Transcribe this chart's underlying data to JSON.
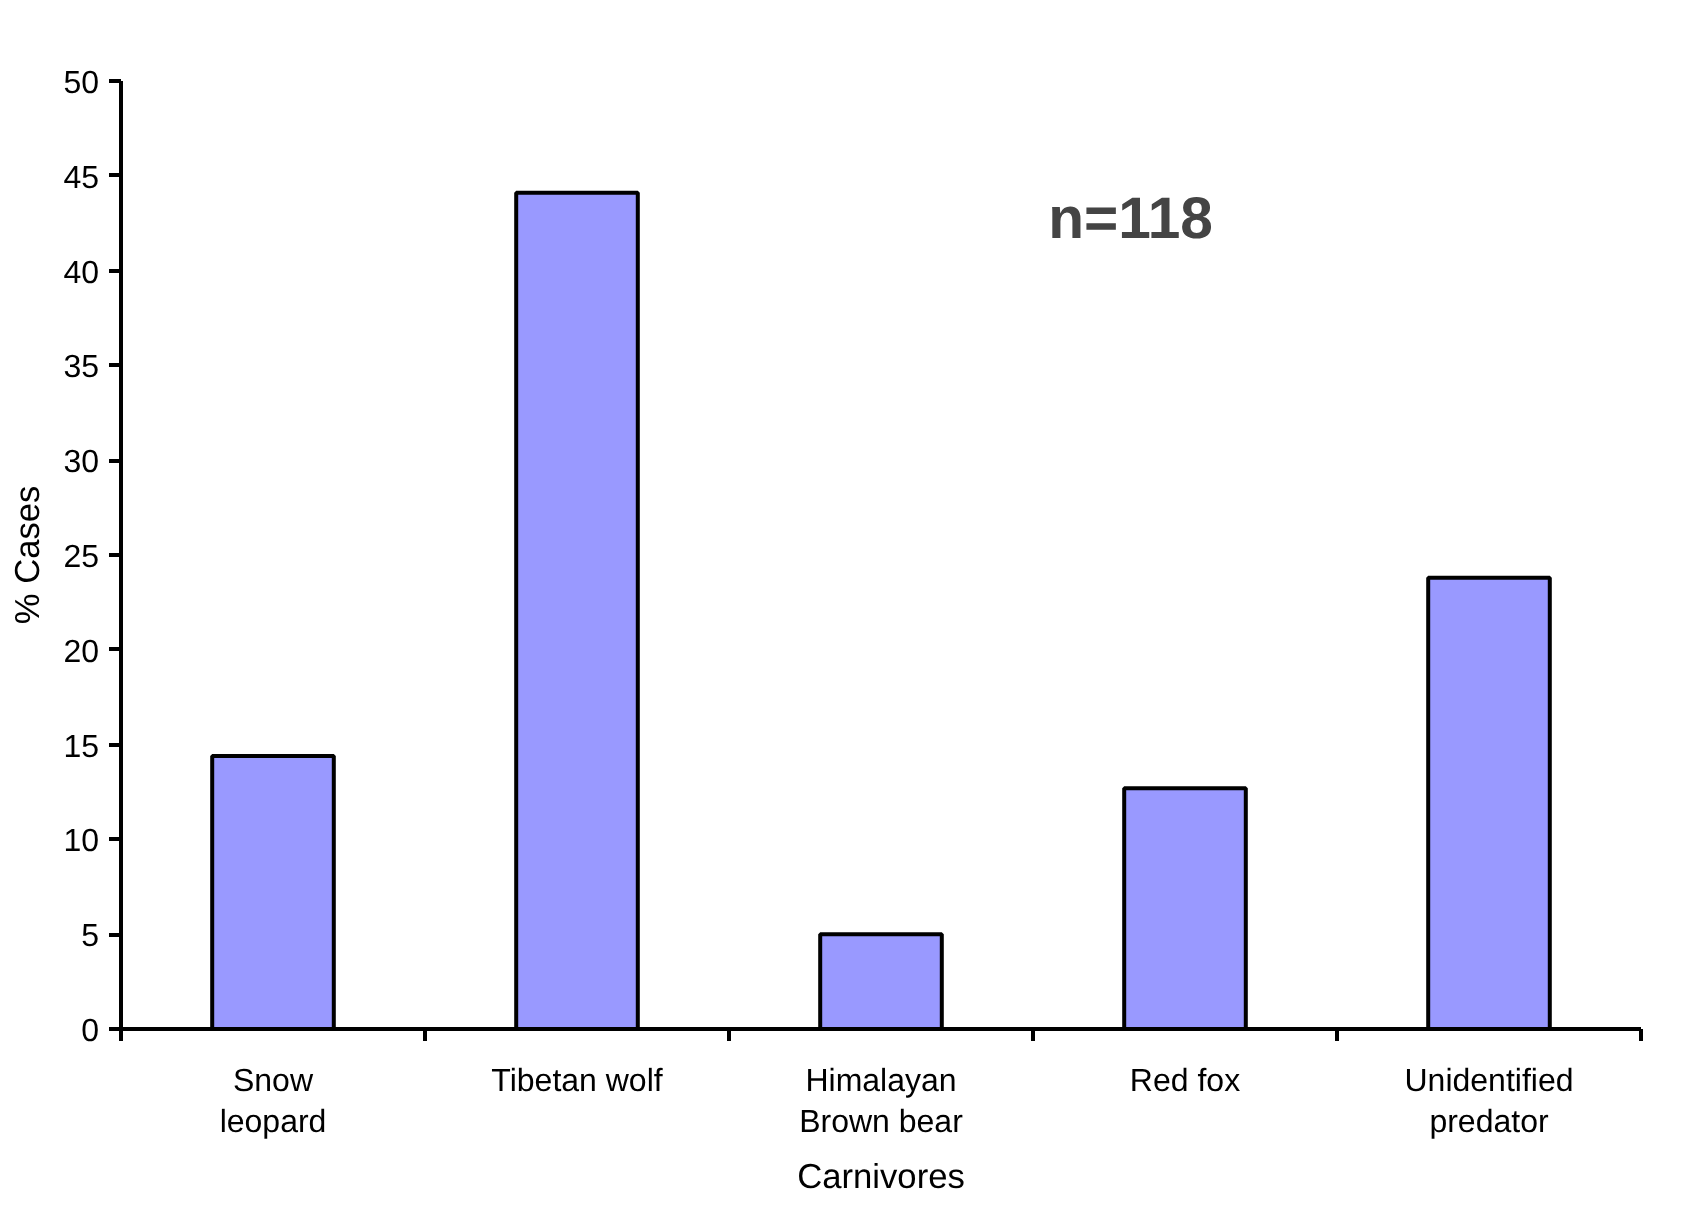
{
  "chart_data": {
    "type": "bar",
    "xlabel": "Carnivores",
    "ylabel": "% Cases",
    "categories": [
      "Snow\nleopard",
      "Tibetan wolf",
      "Himalayan\nBrown bear",
      "Red fox",
      "Unidentified\npredator"
    ],
    "values": [
      14.4,
      44.1,
      5.0,
      12.7,
      23.8
    ],
    "color": "#9999ff",
    "ylim": [
      0,
      50
    ],
    "yticks": [
      0,
      5,
      10,
      15,
      20,
      25,
      30,
      35,
      40,
      45,
      50
    ],
    "grid": false,
    "annotations": [
      "n=118"
    ]
  }
}
